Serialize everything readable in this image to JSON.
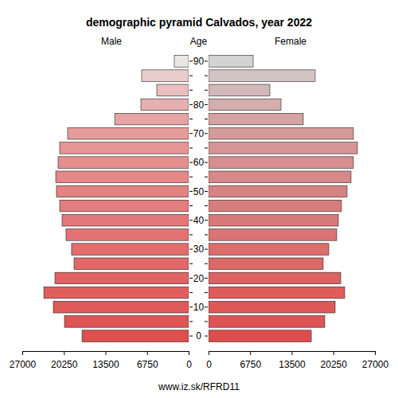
{
  "chart_data": {
    "type": "pyramid",
    "orientation": "horizontal",
    "title": "demographic pyramid Calvados, year 2022",
    "y_label": "Age",
    "source": "www.iz.sk/RFRD11",
    "categories": [
      "0",
      null,
      "10",
      null,
      "20",
      null,
      "30",
      null,
      "40",
      null,
      "50",
      null,
      "60",
      null,
      "70",
      null,
      "80",
      null,
      null,
      "90"
    ],
    "series": [
      {
        "name": "Male",
        "values": [
          17300,
          20150,
          21960,
          23500,
          21700,
          18600,
          19000,
          19900,
          20540,
          20930,
          21450,
          21570,
          21190,
          20930,
          19640,
          12000,
          7750,
          5170,
          7620,
          2330
        ],
        "colors": [
          "#df4f4f",
          "#e05454",
          "#e05959",
          "#e15e5e",
          "#e16363",
          "#e26868",
          "#e26d6d",
          "#e37373",
          "#e37878",
          "#e47d7d",
          "#e48383",
          "#e58888",
          "#e58e8e",
          "#e69494",
          "#e69b9b",
          "#e7a3a3",
          "#e7b0b0",
          "#e8bebe",
          "#e9cccc",
          "#ebe6e6"
        ]
      },
      {
        "name": "Female",
        "values": [
          16670,
          18860,
          20540,
          22090,
          21450,
          18600,
          19510,
          20800,
          21060,
          21570,
          22480,
          23120,
          23510,
          24160,
          23510,
          15370,
          11760,
          9950,
          17310,
          7240
        ],
        "colors": [
          "#de4d4d",
          "#de5353",
          "#de5858",
          "#dd5d5d",
          "#dd6262",
          "#dc6868",
          "#db6d6d",
          "#da7373",
          "#d97878",
          "#d87d7d",
          "#d88383",
          "#d78888",
          "#d68e8e",
          "#d69494",
          "#d59b9b",
          "#d5a3a3",
          "#d4adad",
          "#d4b8b8",
          "#d3c4c4",
          "#d3d3d3"
        ]
      }
    ],
    "xlim": [
      0,
      27000
    ],
    "xticks": [
      0,
      6750,
      13500,
      20250,
      27000
    ]
  }
}
